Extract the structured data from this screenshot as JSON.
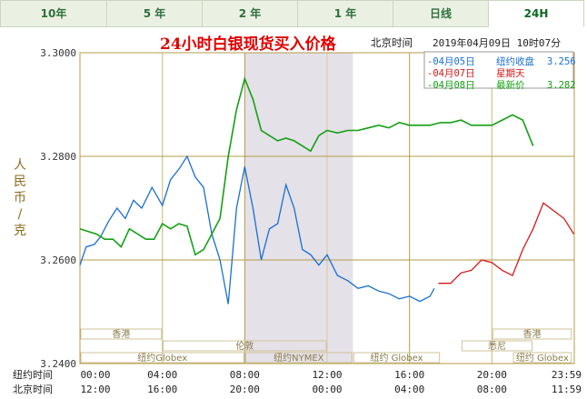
{
  "tabs": [
    {
      "label": "10年",
      "active": false
    },
    {
      "label": "5 年",
      "active": false
    },
    {
      "label": "2 年",
      "active": false
    },
    {
      "label": "1 年",
      "active": false
    },
    {
      "label": "日线",
      "active": false
    },
    {
      "label": "24H",
      "active": true
    }
  ],
  "chart_data": {
    "type": "line",
    "title": "24小时白银现货买入价格",
    "location_label": "北京时间",
    "timestamp": "2019年04月09日 10时07分",
    "ylabel": "人民币/克",
    "ylim": [
      3.24,
      3.3
    ],
    "y_ticks": [
      "3.3000",
      "3.2800",
      "3.2600",
      "3.2400"
    ],
    "row_label_ny": "纽约时间",
    "row_label_bj": "北京时间",
    "x_ticks_ny": [
      "00:00",
      "04:00",
      "08:00",
      "12:00",
      "16:00",
      "20:00",
      "23:59"
    ],
    "x_ticks_bj": [
      "12:00",
      "16:00",
      "20:00",
      "00:00",
      "04:00",
      "08:00",
      "11:59"
    ],
    "legend": [
      {
        "label": "-04月05日",
        "note": "纽约收盘",
        "value": "3.256",
        "color": "#1a6fd1"
      },
      {
        "label": "-04月07日",
        "note": "星期天",
        "value": "",
        "color": "#d41a1a"
      },
      {
        "label": "-04月08日",
        "note": "最新价",
        "value": "3.282",
        "color": "#14a014"
      }
    ],
    "markets": [
      "香港",
      "伦敦",
      "纽约Globex",
      "纽约NYMEX",
      "纽约 Globex",
      "悉尼",
      "香港",
      "纽约 Globex"
    ],
    "series": [
      {
        "name": "04月05日",
        "color": "#1a6fd1",
        "x": [
          0,
          0.3,
          0.7,
          1,
          1.4,
          1.8,
          2.2,
          2.6,
          3,
          3.5,
          4,
          4.4,
          4.8,
          5.2,
          5.6,
          6,
          6.4,
          6.8,
          7.2,
          7.6,
          8,
          8.4,
          8.8,
          9.2,
          9.6,
          10,
          10.4,
          10.8,
          11.2,
          11.6,
          12,
          12.5,
          13,
          13.5,
          14,
          14.5,
          15,
          15.5,
          16,
          16.5,
          17,
          17.2
        ],
        "y": [
          3.259,
          3.2625,
          3.263,
          3.2645,
          3.2675,
          3.27,
          3.268,
          3.2715,
          3.27,
          3.274,
          3.2705,
          3.2755,
          3.2775,
          3.28,
          3.276,
          3.274,
          3.265,
          3.26,
          3.2515,
          3.27,
          3.278,
          3.27,
          3.26,
          3.266,
          3.267,
          3.2745,
          3.27,
          3.262,
          3.261,
          3.259,
          3.261,
          3.257,
          3.256,
          3.2545,
          3.255,
          3.254,
          3.2535,
          3.2525,
          3.253,
          3.252,
          3.253,
          3.2545
        ]
      },
      {
        "name": "04月07日",
        "color": "#d41a1a",
        "x": [
          17.4,
          18,
          18.5,
          19,
          19.5,
          20,
          20.5,
          21,
          21.5,
          22,
          22.5,
          23,
          23.5,
          23.98
        ],
        "y": [
          3.2555,
          3.2555,
          3.2575,
          3.258,
          3.26,
          3.2595,
          3.258,
          3.257,
          3.262,
          3.266,
          3.271,
          3.2695,
          3.268,
          3.265
        ]
      },
      {
        "name": "04月08日",
        "color": "#14a014",
        "x": [
          0,
          0.4,
          0.8,
          1.2,
          1.6,
          2,
          2.4,
          2.8,
          3.2,
          3.6,
          4,
          4.4,
          4.8,
          5.2,
          5.6,
          6,
          6.4,
          6.8,
          7.2,
          7.6,
          8,
          8.4,
          8.8,
          9.2,
          9.6,
          10,
          10.4,
          10.8,
          11.2,
          11.6,
          12,
          12.5,
          13,
          13.5,
          14,
          14.5,
          15,
          15.5,
          16,
          16.5,
          17,
          17.5,
          18,
          18.5,
          19,
          19.5,
          20,
          20.5,
          21,
          21.5,
          21.8,
          22
        ],
        "y": [
          3.266,
          3.2655,
          3.265,
          3.264,
          3.264,
          3.2625,
          3.266,
          3.265,
          3.264,
          3.264,
          3.267,
          3.266,
          3.267,
          3.2665,
          3.261,
          3.262,
          3.265,
          3.268,
          3.28,
          3.289,
          3.295,
          3.291,
          3.285,
          3.284,
          3.283,
          3.2835,
          3.283,
          3.282,
          3.281,
          3.284,
          3.285,
          3.2845,
          3.285,
          3.285,
          3.2855,
          3.286,
          3.2855,
          3.2865,
          3.286,
          3.286,
          3.286,
          3.2865,
          3.2865,
          3.287,
          3.286,
          3.286,
          3.286,
          3.287,
          3.288,
          3.287,
          3.284,
          3.282
        ]
      }
    ]
  }
}
